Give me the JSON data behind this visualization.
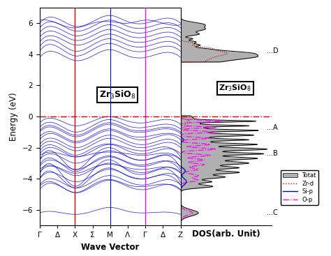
{
  "ylim": [
    -7,
    7
  ],
  "yticks": [
    -6,
    -4,
    -2,
    0,
    2,
    4,
    6
  ],
  "band_color": "#0000CC",
  "fermi_color": "#CC0000",
  "kpoint_labels": [
    "Γ",
    "Δ",
    "X",
    "Σ",
    "M",
    "Λ",
    "Γ",
    "Δ",
    "Z"
  ],
  "xlabel_band": "Wave Vector",
  "xlabel_dos": "DOS(arb. Unit)",
  "ylabel": "Energy (eV)",
  "formula_band": "Zr$_3$SiO$_8$",
  "formula_dos": "Zr$_3$SiO$_8$",
  "dos_labels": [
    "...D",
    "...A",
    "...B",
    "...C"
  ],
  "dos_label_energies": [
    4.2,
    -0.7,
    -2.4,
    -6.2
  ],
  "legend_labels": [
    "Totat",
    "Zr-d",
    "Si-p",
    "O-p"
  ],
  "dos_color_total": "#B0B0B0",
  "dos_color_zrd": "#CC0000",
  "dos_color_sip": "#0000CC",
  "dos_color_op": "#FF00FF",
  "background": "#FFFFFF"
}
